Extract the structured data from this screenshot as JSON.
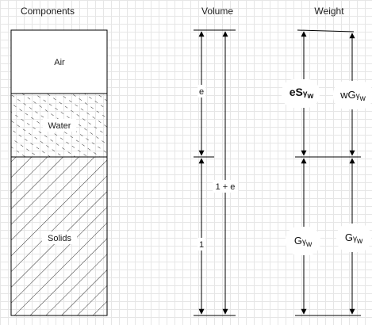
{
  "headers": {
    "components": "Components",
    "volume": "Volume",
    "weight": "Weight"
  },
  "phases": {
    "air": "Air",
    "water": "Water",
    "solids": "Solids"
  },
  "volume_labels": {
    "voids": "e",
    "total": "1 + e",
    "solids": "1"
  },
  "weight_labels": {
    "water_left": {
      "main": "eS",
      "gamma": "γ",
      "sub": "w"
    },
    "water_right": {
      "main": "wG",
      "gamma": "γ",
      "sub": "w"
    },
    "solids_left": {
      "main": "G",
      "gamma": "γ",
      "sub": "w"
    },
    "solids_right": {
      "main": "G",
      "gamma": "γ",
      "sub": "w"
    }
  }
}
